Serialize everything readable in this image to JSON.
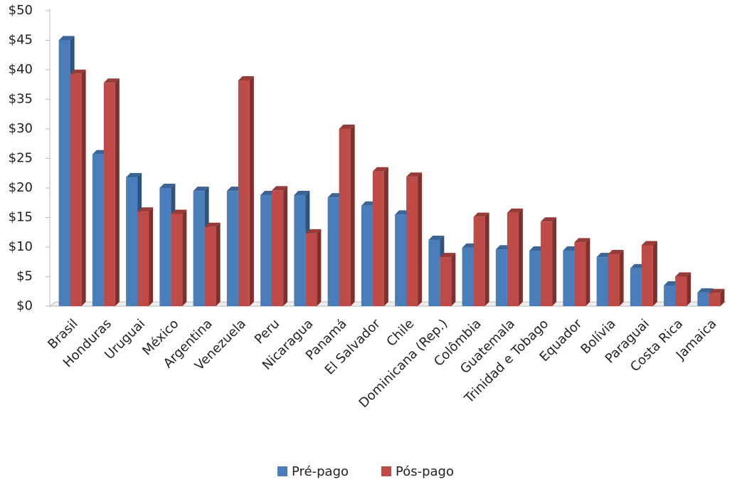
{
  "chart_data": {
    "type": "bar",
    "categories": [
      "Brasil",
      "Honduras",
      "Uruguai",
      "México",
      "Argentina",
      "Venezuela",
      "Peru",
      "Nicaragua",
      "Panamá",
      "El Salvador",
      "Chile",
      "Dominicana (Rep.)",
      "Colômbia",
      "Guatemala",
      "Trinidad e Tobago",
      "Equador",
      "Bolívia",
      "Paraguai",
      "Costa Rica",
      "Jamaica"
    ],
    "series": [
      {
        "name": "Pré-pago",
        "color": "#4a7ebb",
        "values": [
          45,
          25.7,
          21.8,
          20,
          19.5,
          19.5,
          18.8,
          18.8,
          18.4,
          17,
          15.5,
          11.2,
          9.9,
          9.6,
          9.4,
          9.4,
          8.3,
          6.4,
          3.5,
          2.3
        ]
      },
      {
        "name": "Pós-pago",
        "color": "#be4b48",
        "values": [
          39.3,
          37.8,
          16,
          15.6,
          13.4,
          38.2,
          19.6,
          12.3,
          30,
          22.8,
          21.9,
          8.3,
          15.1,
          15.8,
          14.3,
          10.8,
          8.8,
          10.3,
          5,
          2.2
        ]
      }
    ],
    "ylim": [
      0,
      50
    ],
    "yticks": [
      {
        "value": 0,
        "label": "$0"
      },
      {
        "value": 5,
        "label": "$5"
      },
      {
        "value": 10,
        "label": "$10"
      },
      {
        "value": 15,
        "label": "$15"
      },
      {
        "value": 20,
        "label": "$20"
      },
      {
        "value": 25,
        "label": "$25"
      },
      {
        "value": 30,
        "label": "$30"
      },
      {
        "value": 35,
        "label": "$35"
      },
      {
        "value": 40,
        "label": "$40"
      },
      {
        "value": 45,
        "label": "$45"
      },
      {
        "value": 50,
        "label": "$50"
      }
    ],
    "legend": "bottom"
  }
}
